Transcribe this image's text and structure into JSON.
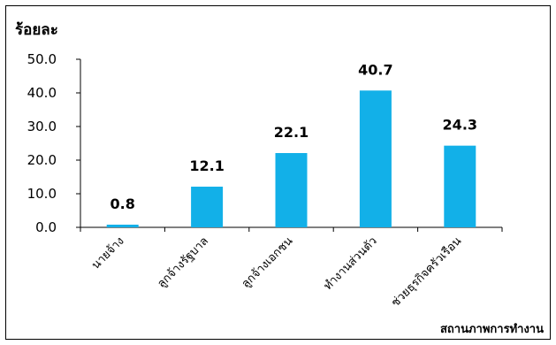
{
  "chart_data": {
    "type": "bar",
    "ylabel": "ร้อยละ",
    "xlabel": "สถานภาพการทำงาน",
    "categories": [
      "นายจ้าง",
      "ลูกจ้างรัฐบาล",
      "ลูกจ้างเอกชน",
      "ทำงานส่วนตัว",
      "ช่วยธุรกิจครัวเรือน"
    ],
    "values": [
      0.8,
      12.1,
      22.1,
      40.7,
      24.3
    ],
    "value_labels": [
      "0.8",
      "12.1",
      "22.1",
      "40.7",
      "24.3"
    ],
    "ylim": [
      0,
      50
    ],
    "yticks": [
      "0.0",
      "10.0",
      "20.0",
      "30.0",
      "40.0",
      "50.0"
    ],
    "grid": false,
    "colors": {
      "bar": "#12B0E8",
      "axis": "#000000"
    }
  }
}
